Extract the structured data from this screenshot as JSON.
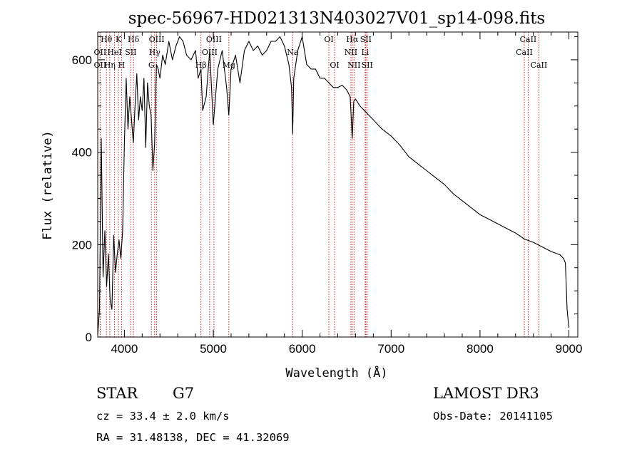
{
  "chart_data": {
    "type": "line",
    "title": "spec-56967-HD021313N403027V01_sp14-098.fits",
    "xlabel": "Wavelength (Å)",
    "ylabel": "Flux (relative)",
    "xlim": [
      3700,
      9100
    ],
    "ylim": [
      0,
      660
    ],
    "x_ticks": [
      4000,
      5000,
      6000,
      7000,
      8000,
      9000
    ],
    "y_ticks": [
      0,
      200,
      400,
      600
    ],
    "spectrum": {
      "x": [
        3700,
        3720,
        3740,
        3760,
        3780,
        3800,
        3820,
        3840,
        3860,
        3880,
        3900,
        3920,
        3940,
        3960,
        3980,
        4000,
        4020,
        4040,
        4060,
        4080,
        4100,
        4120,
        4140,
        4160,
        4180,
        4200,
        4220,
        4240,
        4260,
        4280,
        4300,
        4320,
        4340,
        4360,
        4380,
        4400,
        4430,
        4460,
        4500,
        4540,
        4580,
        4620,
        4660,
        4700,
        4750,
        4800,
        4830,
        4861,
        4880,
        4920,
        4960,
        5000,
        5050,
        5100,
        5150,
        5175,
        5200,
        5250,
        5300,
        5350,
        5400,
        5450,
        5500,
        5550,
        5600,
        5650,
        5700,
        5750,
        5800,
        5850,
        5880,
        5893,
        5905,
        5920,
        5950,
        6000,
        6050,
        6100,
        6150,
        6200,
        6250,
        6300,
        6350,
        6400,
        6450,
        6500,
        6540,
        6563,
        6580,
        6600,
        6650,
        6700,
        6750,
        6800,
        6850,
        6900,
        7000,
        7100,
        7200,
        7300,
        7400,
        7500,
        7600,
        7700,
        7800,
        7900,
        8000,
        8100,
        8200,
        8300,
        8400,
        8500,
        8600,
        8700,
        8800,
        8900,
        8940,
        8960,
        8980,
        9000
      ],
      "y": [
        5,
        60,
        430,
        130,
        230,
        110,
        180,
        80,
        60,
        220,
        140,
        180,
        210,
        170,
        230,
        420,
        560,
        450,
        520,
        470,
        420,
        500,
        570,
        470,
        520,
        490,
        560,
        410,
        550,
        500,
        480,
        360,
        420,
        590,
        580,
        560,
        610,
        590,
        640,
        600,
        630,
        650,
        640,
        610,
        600,
        620,
        560,
        580,
        490,
        520,
        620,
        460,
        580,
        620,
        540,
        480,
        580,
        610,
        550,
        620,
        640,
        620,
        630,
        610,
        620,
        640,
        640,
        650,
        630,
        590,
        540,
        440,
        560,
        580,
        620,
        650,
        590,
        580,
        580,
        560,
        560,
        550,
        540,
        540,
        545,
        535,
        520,
        430,
        510,
        515,
        500,
        490,
        480,
        470,
        460,
        450,
        435,
        415,
        390,
        375,
        360,
        345,
        330,
        310,
        295,
        280,
        265,
        255,
        245,
        235,
        225,
        212,
        205,
        195,
        185,
        178,
        170,
        160,
        60,
        20
      ]
    },
    "line_markers": [
      {
        "wavelength": 3798,
        "label": "Hθ",
        "row": 0
      },
      {
        "wavelength": 3727,
        "label": "OII",
        "row": 1
      },
      {
        "wavelength": 3727,
        "label": "OII",
        "row": 2
      },
      {
        "wavelength": 3835,
        "label": "Hη",
        "row": 2
      },
      {
        "wavelength": 3889,
        "label": "HeI",
        "row": 1
      },
      {
        "wavelength": 3934,
        "label": "K",
        "row": 0
      },
      {
        "wavelength": 3968,
        "label": "H",
        "row": 2
      },
      {
        "wavelength": 4072,
        "label": "SII",
        "row": 1
      },
      {
        "wavelength": 4102,
        "label": "Hδ",
        "row": 0
      },
      {
        "wavelength": 4304,
        "label": "G",
        "row": 2
      },
      {
        "wavelength": 4340,
        "label": "Hγ",
        "row": 1
      },
      {
        "wavelength": 4363,
        "label": "OIII",
        "row": 0
      },
      {
        "wavelength": 4861,
        "label": "Hβ",
        "row": 2
      },
      {
        "wavelength": 4959,
        "label": "OIII",
        "row": 1
      },
      {
        "wavelength": 5007,
        "label": "OIII",
        "row": 0
      },
      {
        "wavelength": 5175,
        "label": "Mg",
        "row": 2
      },
      {
        "wavelength": 5893,
        "label": "Na",
        "row": 1
      },
      {
        "wavelength": 6300,
        "label": "OI",
        "row": 0
      },
      {
        "wavelength": 6364,
        "label": "OI",
        "row": 2
      },
      {
        "wavelength": 6548,
        "label": "NII",
        "row": 1
      },
      {
        "wavelength": 6563,
        "label": "Hα",
        "row": 0
      },
      {
        "wavelength": 6583,
        "label": "NII",
        "row": 2
      },
      {
        "wavelength": 6708,
        "label": "Li",
        "row": 1
      },
      {
        "wavelength": 6716,
        "label": "SII",
        "row": 0
      },
      {
        "wavelength": 6731,
        "label": "SII",
        "row": 2
      },
      {
        "wavelength": 8498,
        "label": "CaII",
        "row": 1
      },
      {
        "wavelength": 8542,
        "label": "CaII",
        "row": 0
      },
      {
        "wavelength": 8662,
        "label": "CaII",
        "row": 2
      }
    ]
  },
  "info": {
    "object_class": "STAR",
    "subclass": "G7",
    "redshift": "cz = 33.4 ± 2.0 km/s",
    "coords": "RA =  31.48138, DEC =  41.32069",
    "survey": "LAMOST DR3",
    "obs_date": "Obs-Date: 20141105"
  }
}
